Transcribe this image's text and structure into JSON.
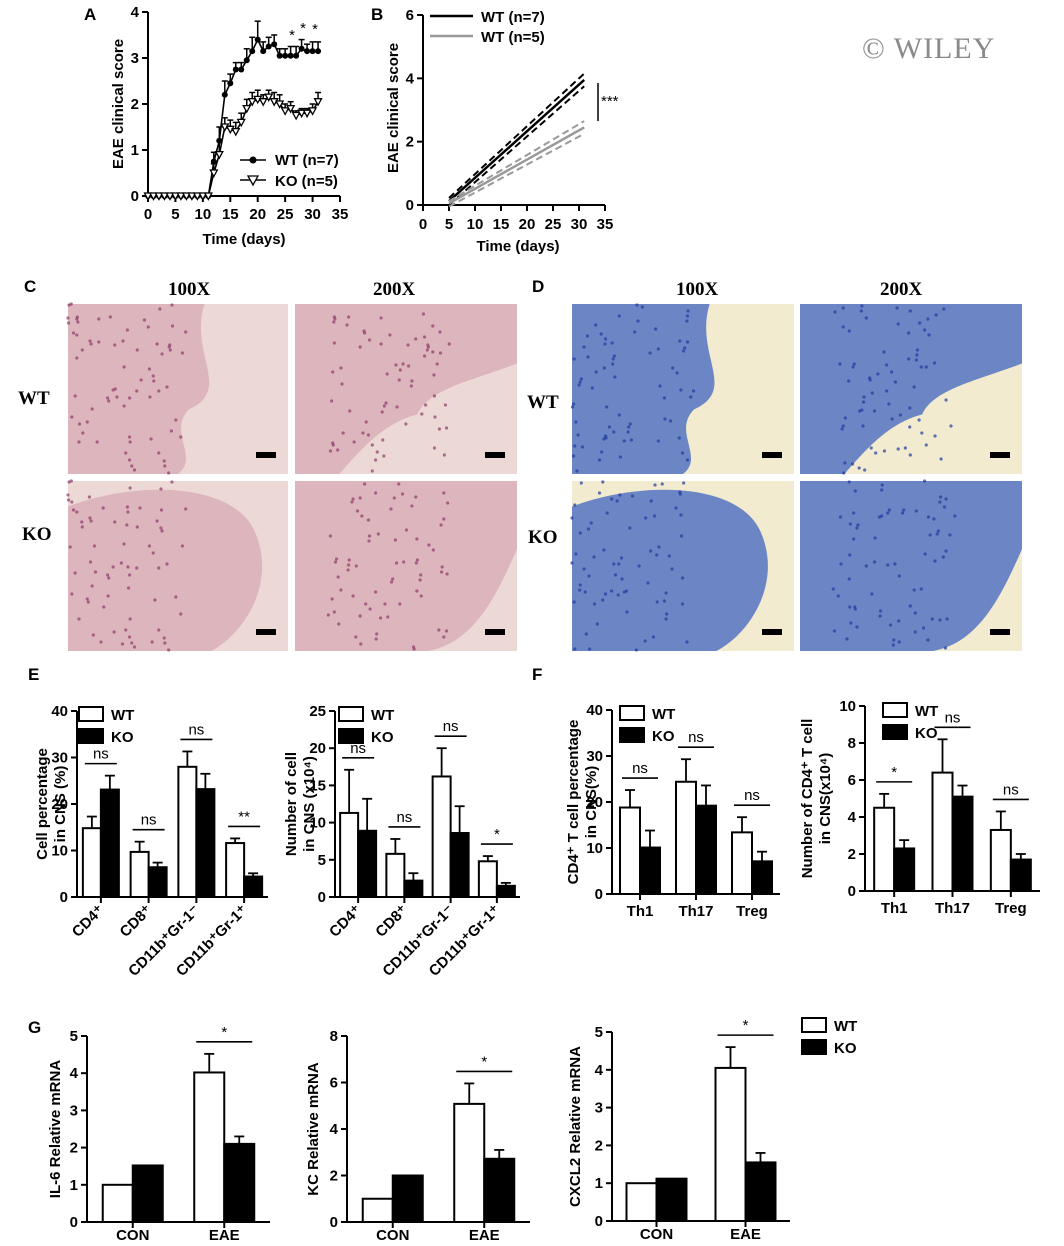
{
  "watermark": "© WILEY",
  "colors": {
    "he_bg": "#ecd9d6",
    "he_tissue": "#d8a8b4",
    "he_cell": "#8e3a6a",
    "lfb_bg": "#f3ebd0",
    "lfb_tissue": "#4a6cc0",
    "lfb_dark": "#1e3ba0"
  },
  "panels": {
    "A": "A",
    "B": "B",
    "C": "C",
    "D": "D",
    "E": "E",
    "F": "F",
    "G": "G"
  },
  "micrographs": {
    "col_100x": "100X",
    "col_200x": "200X",
    "row_wt": "WT",
    "row_ko": "KO",
    "C_stain": "H&E",
    "D_stain": "LFB"
  },
  "chart_data": [
    {
      "id": "A",
      "type": "line",
      "xlabel": "Time (days)",
      "ylabel": "EAE clinical score",
      "xlim": [
        0,
        35
      ],
      "ylim": [
        0,
        4
      ],
      "xticks": [
        0,
        5,
        10,
        15,
        20,
        25,
        30,
        35
      ],
      "yticks": [
        0,
        1,
        2,
        3,
        4
      ],
      "legend": [
        "WT (n=7)",
        "KO  (n=5)"
      ],
      "series": [
        {
          "name": "WT (n=7)",
          "marker": "circle",
          "x": [
            0,
            1,
            2,
            3,
            4,
            5,
            6,
            7,
            8,
            9,
            10,
            11,
            12,
            13,
            14,
            15,
            16,
            17,
            18,
            19,
            20,
            21,
            22,
            23,
            24,
            25,
            26,
            27,
            28,
            29,
            30,
            31
          ],
          "y": [
            0,
            0,
            0,
            0,
            0,
            0,
            0,
            0,
            0,
            0,
            0,
            0,
            0.75,
            1.2,
            2.2,
            2.45,
            2.75,
            2.75,
            2.95,
            3.15,
            3.4,
            3.15,
            3.25,
            3.3,
            3.05,
            3.05,
            3.05,
            3.05,
            3.2,
            3.15,
            3.15,
            3.15
          ],
          "err": [
            0,
            0,
            0,
            0,
            0,
            0,
            0,
            0,
            0,
            0,
            0,
            0,
            0.2,
            0.3,
            0.3,
            0.2,
            0.15,
            0.15,
            0.25,
            0.3,
            0.4,
            0.2,
            0.2,
            0.2,
            0.15,
            0.15,
            0.2,
            0.2,
            0.2,
            0.15,
            0.2,
            0.2
          ]
        },
        {
          "name": "KO  (n=5)",
          "marker": "triangle-down",
          "x": [
            0,
            1,
            2,
            3,
            4,
            5,
            6,
            7,
            8,
            9,
            10,
            11,
            12,
            13,
            14,
            15,
            16,
            17,
            18,
            19,
            20,
            21,
            22,
            23,
            24,
            25,
            26,
            27,
            28,
            29,
            30,
            31
          ],
          "y": [
            0,
            0,
            0,
            0,
            0,
            0,
            0,
            0,
            0,
            0,
            0,
            0,
            0.5,
            0.9,
            1.5,
            1.45,
            1.4,
            1.6,
            1.9,
            2.05,
            2.1,
            2.05,
            2.15,
            2.05,
            2.0,
            1.85,
            1.9,
            1.75,
            1.8,
            1.8,
            1.85,
            2.05
          ],
          "err": [
            0,
            0,
            0,
            0,
            0,
            0,
            0,
            0,
            0,
            0,
            0,
            0,
            0.2,
            0.3,
            0.2,
            0.2,
            0.2,
            0.2,
            0.2,
            0.2,
            0.2,
            0.15,
            0.15,
            0.2,
            0.2,
            0.15,
            0.15,
            0.1,
            0.1,
            0.1,
            0.15,
            0.2
          ]
        }
      ],
      "annotations": [
        "*",
        "*",
        "*"
      ]
    },
    {
      "id": "B",
      "type": "line",
      "xlabel": "Time (days)",
      "ylabel": "EAE clinical score",
      "xlim": [
        0,
        35
      ],
      "ylim": [
        0,
        6
      ],
      "xticks": [
        0,
        5,
        10,
        15,
        20,
        25,
        30,
        35
      ],
      "yticks": [
        0,
        2,
        4,
        6
      ],
      "legend": [
        "WT (n=7)",
        "WT (n=5)"
      ],
      "series": [
        {
          "name": "WT (n=7)",
          "x": [
            5,
            31
          ],
          "y": [
            0.12,
            3.95
          ],
          "ci_low": [
            0.0,
            3.75
          ],
          "ci_high": [
            0.22,
            4.15
          ],
          "color": "#000000"
        },
        {
          "name": "WT (n=5)",
          "x": [
            5,
            31
          ],
          "y": [
            0.05,
            2.45
          ],
          "ci_low": [
            -0.05,
            2.25
          ],
          "ci_high": [
            0.12,
            2.65
          ],
          "color": "#999999"
        }
      ],
      "annotations": [
        "***"
      ]
    },
    {
      "id": "E1",
      "type": "bar",
      "ylabel_lines": [
        "Cell percentage",
        "in CNS (%)"
      ],
      "categories": [
        "CD4⁺",
        "CD8⁺",
        "CD11b⁺Gr-1⁻",
        "CD11b⁺Gr-1⁺"
      ],
      "ylim": [
        0,
        40
      ],
      "yticks": [
        0,
        10,
        20,
        30,
        40
      ],
      "legend": [
        "WT",
        "KO"
      ],
      "series": [
        {
          "name": "WT",
          "values": [
            14.8,
            9.7,
            28,
            11.6
          ],
          "err": [
            2.5,
            2.2,
            3.3,
            1.0
          ]
        },
        {
          "name": "KO",
          "values": [
            23.1,
            6.4,
            23.2,
            4.4
          ],
          "err": [
            3.0,
            1.0,
            3.3,
            0.7
          ]
        }
      ],
      "sig": [
        "ns",
        "ns",
        "ns",
        "**"
      ]
    },
    {
      "id": "E2",
      "type": "bar",
      "ylabel_lines": [
        "Number of cell",
        "in CNS  (x10⁴)"
      ],
      "categories": [
        "CD4⁺",
        "CD8⁺",
        "CD11b⁺Gr-1⁻",
        "CD11b⁺Gr-1⁺"
      ],
      "ylim": [
        0,
        25
      ],
      "yticks": [
        0,
        5,
        10,
        15,
        20,
        25
      ],
      "legend": [
        "WT",
        "KO"
      ],
      "series": [
        {
          "name": "WT",
          "values": [
            11.3,
            5.8,
            16.2,
            4.8
          ],
          "err": [
            5.8,
            2.0,
            3.8,
            0.7
          ]
        },
        {
          "name": "KO",
          "values": [
            8.9,
            2.2,
            8.6,
            1.5
          ],
          "err": [
            4.3,
            1.0,
            3.6,
            0.4
          ]
        }
      ],
      "sig": [
        "ns",
        "ns",
        "ns",
        "*"
      ]
    },
    {
      "id": "F1",
      "type": "bar",
      "ylabel_lines": [
        "CD4⁺ T cell percentage",
        "in CNS(%)"
      ],
      "categories": [
        "Th1",
        "Th17",
        "Treg"
      ],
      "ylim": [
        0,
        40
      ],
      "yticks": [
        0,
        10,
        20,
        30,
        40
      ],
      "legend": [
        "WT",
        "KO"
      ],
      "series": [
        {
          "name": "WT",
          "values": [
            18.8,
            24.4,
            13.4
          ],
          "err": [
            3.8,
            4.9,
            3.3
          ]
        },
        {
          "name": "KO",
          "values": [
            10.1,
            19.2,
            7.1
          ],
          "err": [
            3.7,
            4.4,
            2.1
          ]
        }
      ],
      "sig": [
        "ns",
        "ns",
        "ns"
      ]
    },
    {
      "id": "F2",
      "type": "bar",
      "ylabel_lines": [
        "Number of CD4⁺ T cell",
        "in CNS(x10⁴)"
      ],
      "categories": [
        "Th1",
        "Th17",
        "Treg"
      ],
      "ylim": [
        0,
        10
      ],
      "yticks": [
        0,
        2,
        4,
        6,
        8,
        10
      ],
      "legend": [
        "WT",
        "KO"
      ],
      "series": [
        {
          "name": "WT",
          "values": [
            4.5,
            6.4,
            3.3
          ],
          "err": [
            0.75,
            1.8,
            1.0
          ]
        },
        {
          "name": "KO",
          "values": [
            2.3,
            5.1,
            1.7
          ],
          "err": [
            0.45,
            0.6,
            0.3
          ]
        }
      ],
      "sig": [
        "*",
        "ns",
        "ns"
      ]
    },
    {
      "id": "G1",
      "type": "bar",
      "ylabel": "IL-6 Relative mRNA",
      "categories": [
        "CON",
        "EAE"
      ],
      "ylim": [
        0,
        5
      ],
      "yticks": [
        0,
        1,
        2,
        3,
        4,
        5
      ],
      "series": [
        {
          "name": "WT",
          "values": [
            1.0,
            4.02
          ],
          "err": [
            0,
            0.5
          ]
        },
        {
          "name": "KO",
          "values": [
            1.52,
            2.1
          ],
          "err": [
            0,
            0.2
          ]
        }
      ],
      "sig": [
        "",
        "*"
      ]
    },
    {
      "id": "G2",
      "type": "bar",
      "ylabel": "KC Relative mRNA",
      "categories": [
        "CON",
        "EAE"
      ],
      "ylim": [
        0,
        8
      ],
      "yticks": [
        0,
        2,
        4,
        6,
        8
      ],
      "series": [
        {
          "name": "WT",
          "values": [
            1.0,
            5.08
          ],
          "err": [
            0,
            0.88
          ]
        },
        {
          "name": "KO",
          "values": [
            2.0,
            2.72
          ],
          "err": [
            0,
            0.38
          ]
        }
      ],
      "sig": [
        "",
        "*"
      ]
    },
    {
      "id": "G3",
      "type": "bar",
      "ylabel": "CXCL2 Relative mRNA",
      "categories": [
        "CON",
        "EAE"
      ],
      "ylim": [
        0,
        5
      ],
      "yticks": [
        0,
        1,
        2,
        3,
        4,
        5
      ],
      "legend": [
        "WT",
        "KO"
      ],
      "series": [
        {
          "name": "WT",
          "values": [
            1.0,
            4.05
          ],
          "err": [
            0,
            0.55
          ]
        },
        {
          "name": "KO",
          "values": [
            1.12,
            1.55
          ],
          "err": [
            0,
            0.25
          ]
        }
      ],
      "sig": [
        "",
        "*"
      ]
    }
  ]
}
